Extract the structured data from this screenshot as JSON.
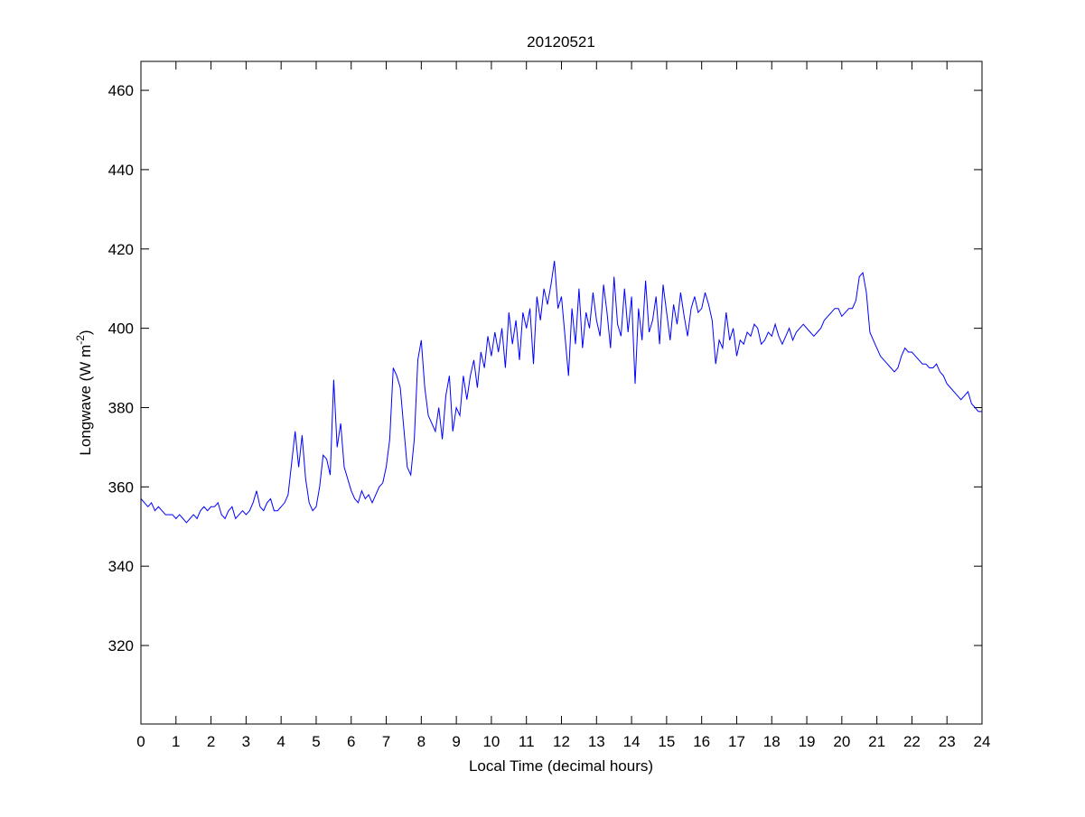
{
  "chart_data": {
    "type": "line",
    "title": "20120521",
    "xlabel": "Local Time (decimal hours)",
    "ylabel": {
      "main": "Longwave (W m",
      "sup": "-2",
      "close": ")"
    },
    "xlim": [
      0,
      24
    ],
    "ylim": [
      300.2,
      467.3
    ],
    "xticks": [
      "0",
      "1",
      "2",
      "3",
      "4",
      "5",
      "6",
      "7",
      "8",
      "9",
      "10",
      "11",
      "12",
      "13",
      "14",
      "15",
      "16",
      "17",
      "18",
      "19",
      "20",
      "21",
      "22",
      "23",
      "24"
    ],
    "yticks": [
      "320",
      "340",
      "360",
      "380",
      "400",
      "420",
      "440",
      "460"
    ],
    "grid": false,
    "line_color": "#0000ff",
    "series": [
      {
        "name": "Longwave",
        "x_start": 0,
        "x_step": 0.1,
        "values": [
          357,
          356,
          355,
          356,
          354,
          355,
          354,
          353,
          353,
          353,
          352,
          353,
          352,
          351,
          352,
          353,
          352,
          354,
          355,
          354,
          355,
          355,
          356,
          353,
          352,
          354,
          355,
          352,
          353,
          354,
          353,
          354,
          356,
          359,
          355,
          354,
          356,
          357,
          354,
          354,
          355,
          356,
          358,
          366,
          374,
          365,
          373,
          362,
          356,
          354,
          355,
          360,
          368,
          367,
          363,
          387,
          370,
          376,
          365,
          362,
          359,
          357,
          356,
          359,
          357,
          358,
          356,
          358,
          360,
          361,
          365,
          372,
          390,
          388,
          385,
          375,
          365,
          363,
          372,
          392,
          397,
          385,
          378,
          376,
          374,
          380,
          372,
          383,
          388,
          374,
          380,
          378,
          388,
          382,
          388,
          392,
          385,
          394,
          390,
          398,
          393,
          399,
          394,
          400,
          390,
          404,
          396,
          402,
          392,
          404,
          400,
          405,
          391,
          408,
          402,
          410,
          406,
          411,
          417,
          405,
          408,
          398,
          388,
          405,
          396,
          410,
          395,
          404,
          400,
          409,
          402,
          398,
          411,
          404,
          395,
          413,
          401,
          398,
          410,
          399,
          408,
          386,
          405,
          397,
          412,
          399,
          402,
          408,
          396,
          411,
          404,
          397,
          406,
          401,
          409,
          403,
          398,
          405,
          408,
          404,
          405,
          409,
          406,
          402,
          391,
          397,
          395,
          404,
          397,
          400,
          393,
          397,
          396,
          399,
          398,
          401,
          400,
          396,
          397,
          399,
          398,
          401,
          398,
          396,
          398,
          400,
          397,
          399,
          400,
          401,
          400,
          399,
          398,
          399,
          400,
          402,
          403,
          404,
          405,
          405,
          403,
          404,
          405,
          405,
          407,
          413,
          414,
          409,
          399,
          397,
          395,
          393,
          392,
          391,
          390,
          389,
          390,
          393,
          395,
          394,
          394,
          393,
          392,
          391,
          391,
          390,
          390,
          391,
          389,
          388,
          386,
          385,
          384,
          383,
          382,
          383,
          384,
          381,
          380,
          379,
          379
        ]
      }
    ]
  }
}
